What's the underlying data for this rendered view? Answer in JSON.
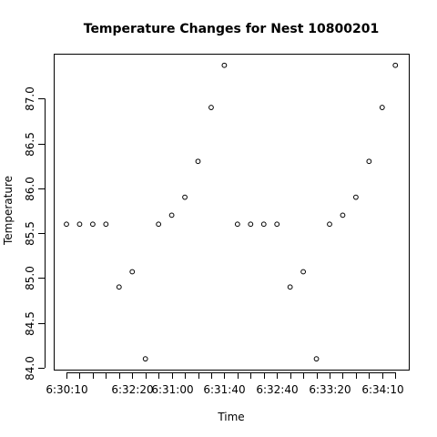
{
  "chart_data": {
    "type": "scatter",
    "title": "Temperature Changes for Nest 10800201",
    "xlabel": "Time",
    "ylabel": "Temperature",
    "x_tick_labels": [
      "6:30:10",
      "6:32:20",
      "6:31:00",
      "6:31:40",
      "6:32:40",
      "6:33:20",
      "6:34:10"
    ],
    "y_tick_labels": [
      "84.0",
      "84.5",
      "85.0",
      "85.5",
      "86.0",
      "86.5",
      "87.0"
    ],
    "y_ticks": [
      84.0,
      84.5,
      85.0,
      85.5,
      86.0,
      86.5,
      87.0
    ],
    "ylim": [
      84.0,
      87.4
    ],
    "grid": false,
    "legend": false,
    "points": [
      {
        "x": "6:30:10",
        "y": 85.6
      },
      {
        "x": "",
        "y": 85.6
      },
      {
        "x": "",
        "y": 85.6
      },
      {
        "x": "",
        "y": 85.6
      },
      {
        "x": "",
        "y": 84.9
      },
      {
        "x": "6:32:20",
        "y": 85.07
      },
      {
        "x": "",
        "y": 84.1
      },
      {
        "x": "",
        "y": 85.6
      },
      {
        "x": "6:31:00",
        "y": 85.7
      },
      {
        "x": "",
        "y": 85.9
      },
      {
        "x": "",
        "y": 86.3
      },
      {
        "x": "",
        "y": 86.9
      },
      {
        "x": "6:31:40",
        "y": 87.37
      },
      {
        "x": "",
        "y": 85.6
      },
      {
        "x": "",
        "y": 85.6
      },
      {
        "x": "",
        "y": 85.6
      },
      {
        "x": "6:32:40",
        "y": 85.6
      },
      {
        "x": "",
        "y": 84.9
      },
      {
        "x": "",
        "y": 85.07
      },
      {
        "x": "",
        "y": 84.1
      },
      {
        "x": "6:33:20",
        "y": 85.6
      },
      {
        "x": "",
        "y": 85.7
      },
      {
        "x": "",
        "y": 85.9
      },
      {
        "x": "",
        "y": 86.3
      },
      {
        "x": "6:34:10",
        "y": 86.9
      },
      {
        "x": "",
        "y": 87.37
      }
    ]
  }
}
